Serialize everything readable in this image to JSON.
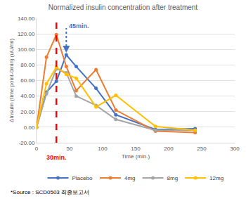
{
  "chart_data": {
    "type": "line",
    "title": "Normalized insulin concentration after treatment",
    "x_label": "Time (min.)",
    "y_label": "ΔInsulin (time point-0min) (uU/ml)",
    "x": [
      0,
      15,
      30,
      45,
      60,
      90,
      120,
      180,
      240
    ],
    "series": [
      {
        "name": "Placebo",
        "color": "#4472c4",
        "values": [
          0,
          45,
          59,
          93,
          78,
          50,
          16,
          -3,
          -2
        ]
      },
      {
        "name": "4mg",
        "color": "#ed7d31",
        "values": [
          0,
          90,
          119,
          78,
          47,
          74,
          22,
          -5,
          -7
        ]
      },
      {
        "name": "8mg",
        "color": "#a5a5a5",
        "values": [
          0,
          43,
          75,
          70,
          40,
          28,
          10,
          -4,
          -4
        ]
      },
      {
        "name": "12mg",
        "color": "#ffc000",
        "values": [
          0,
          56,
          77,
          68,
          63,
          26,
          41,
          1,
          -4
        ]
      }
    ],
    "xlim": [
      0,
      300
    ],
    "xticks": [
      0,
      50,
      100,
      150,
      200,
      250,
      300
    ],
    "ylim": [
      -20,
      140
    ],
    "yticks": [
      {
        "value": -20,
        "label": "-20.00"
      },
      {
        "value": 0,
        "label": "0.00"
      },
      {
        "value": 20,
        "label": "20.00"
      },
      {
        "value": 40,
        "label": "40.00"
      },
      {
        "value": 60,
        "label": "60.00"
      },
      {
        "value": 80,
        "label": "80.00"
      },
      {
        "value": 100,
        "label": "100.00"
      },
      {
        "value": 120,
        "label": "120.00"
      },
      {
        "value": 140,
        "label": "140.00"
      }
    ],
    "grid": true,
    "legend": "bottom",
    "marker": "circle",
    "annotations": [
      {
        "x": 30,
        "text": "30min.",
        "color": "#ff0000",
        "line_style": "dash"
      },
      {
        "x": 45,
        "y": 93,
        "text": "45min.",
        "color": "#4472c4",
        "line_style": "dot"
      }
    ],
    "source": "*Source : SCD0503 최종보고서"
  }
}
